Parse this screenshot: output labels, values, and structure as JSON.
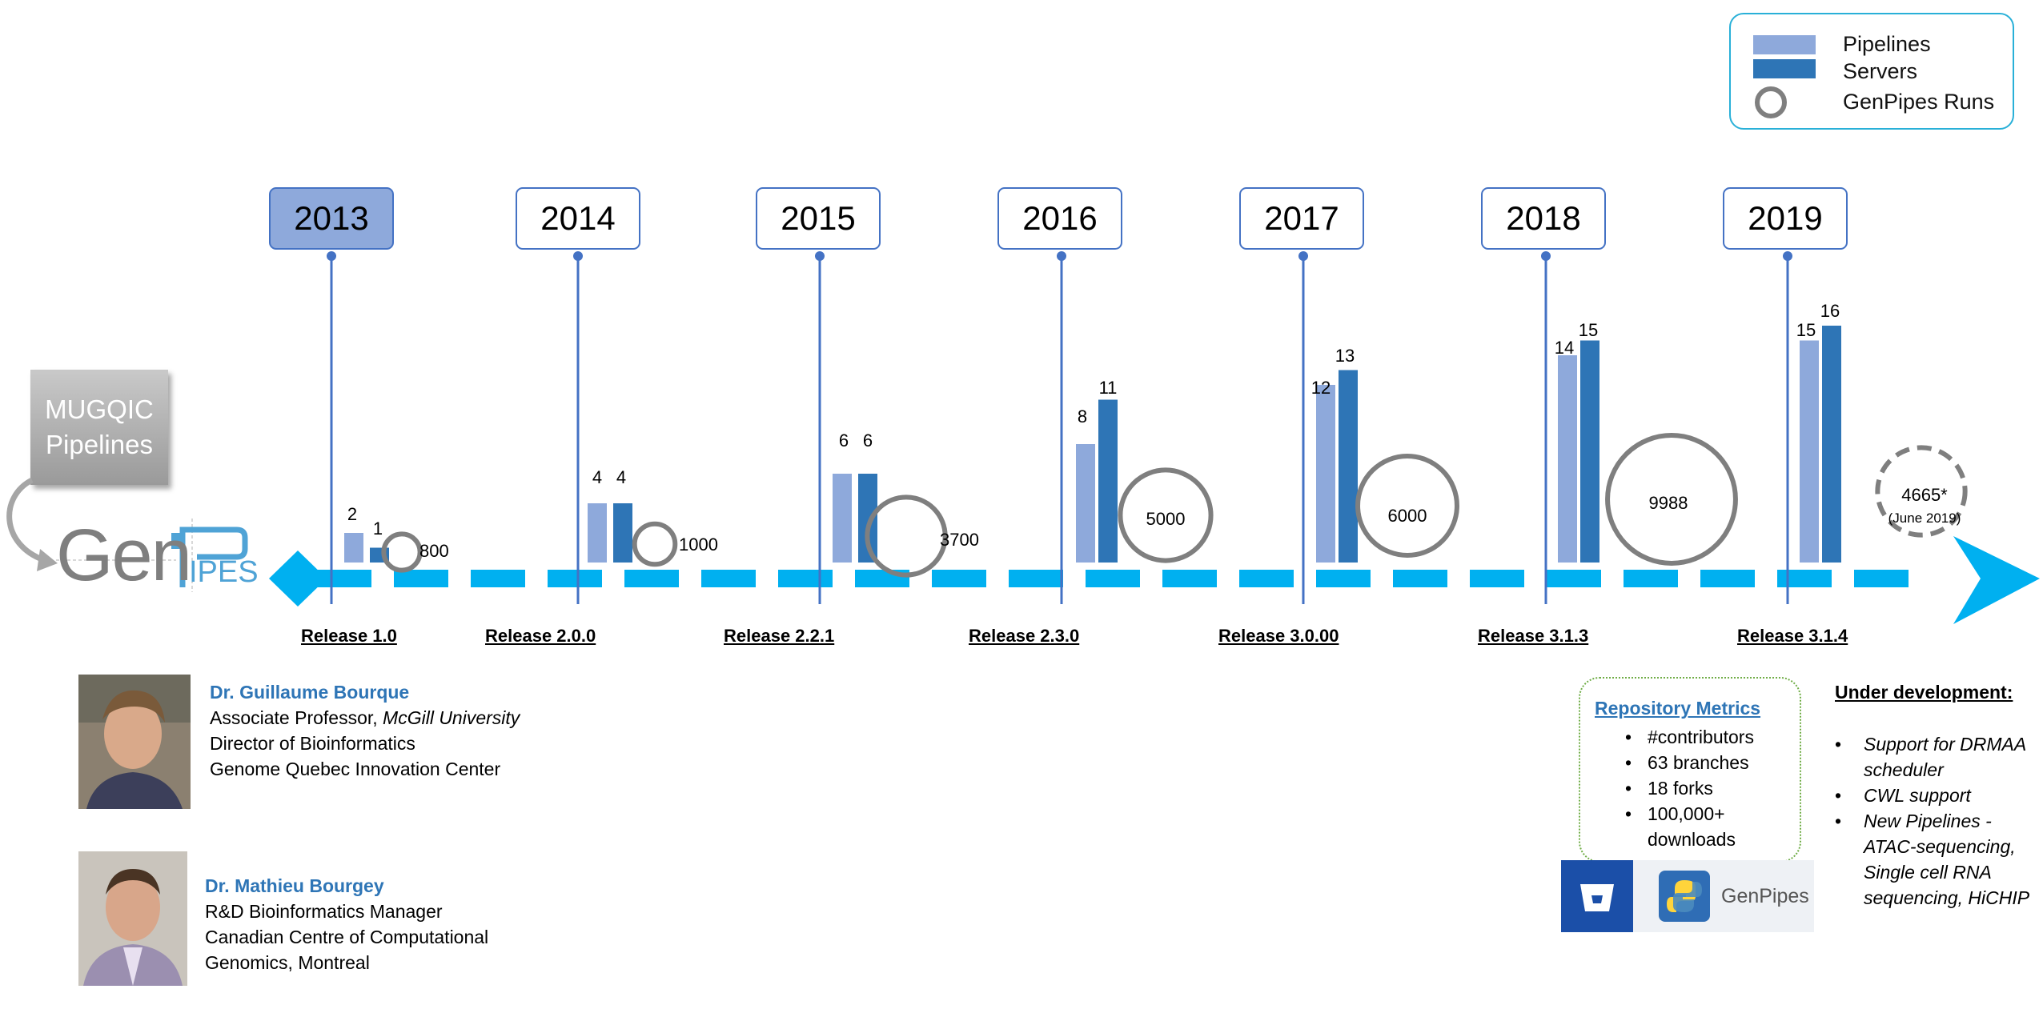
{
  "legend": {
    "pipelines": "Pipelines",
    "servers": "Servers",
    "runs": "GenPipes Runs"
  },
  "colors": {
    "pipelines_bar": "#8ea9db",
    "servers_bar": "#2e75b6",
    "runs_circle": "#7f7f7f",
    "timeline": "#00b0f0",
    "year_stem": "#4472c4"
  },
  "mugqic": {
    "line1": "MUGQIC",
    "line2": "Pipelines"
  },
  "logo": {
    "gen": "Gen",
    "ipes": "IPES"
  },
  "timeline": [
    {
      "year": "2013",
      "release": "Release 1.0",
      "pipelines": 2,
      "servers": 1,
      "runs": "800",
      "runs_value": 800,
      "active": true
    },
    {
      "year": "2014",
      "release": "Release 2.0.0",
      "pipelines": 4,
      "servers": 4,
      "runs": "1000",
      "runs_value": 1000
    },
    {
      "year": "2015",
      "release": "Release 2.2.1",
      "pipelines": 6,
      "servers": 6,
      "runs": "3700",
      "runs_value": 3700
    },
    {
      "year": "2016",
      "release": "Release 2.3.0",
      "pipelines": 8,
      "servers": 11,
      "runs": "5000",
      "runs_value": 5000
    },
    {
      "year": "2017",
      "release": "Release 3.0.00",
      "pipelines": 12,
      "servers": 13,
      "runs": "6000",
      "runs_value": 6000
    },
    {
      "year": "2018",
      "release": "Release 3.1.3",
      "pipelines": 14,
      "servers": 15,
      "runs": "9988",
      "runs_value": 9988
    },
    {
      "year": "2019",
      "release": "Release 3.1.4",
      "pipelines": 15,
      "servers": 16,
      "runs": "4665*",
      "runs_value": 4665,
      "runs_note": "(June 2019)",
      "projected": true
    }
  ],
  "people": [
    {
      "name": "Dr. Guillaume Bourque",
      "title_prefix": "Associate Professor, ",
      "title_affiliation": "McGill University",
      "line2": "Director of Bioinformatics",
      "line3": "Genome Quebec Innovation Center"
    },
    {
      "name": "Dr. Mathieu Bourgey",
      "line1": "R&D Bioinformatics Manager",
      "line2": "Canadian Centre of Computational",
      "line3": "Genomics, Montreal"
    }
  ],
  "repo": {
    "title": "Repository Metrics",
    "items": [
      "#contributors",
      "63 branches",
      "18 forks",
      "100,000+",
      "downloads"
    ]
  },
  "genpipes_badge": "GenPipes",
  "dev": {
    "title": "Under development:",
    "items": [
      [
        "Support for DRMAA",
        "scheduler"
      ],
      [
        "CWL support"
      ],
      [
        "New Pipelines -",
        "ATAC-sequencing,",
        "Single cell RNA",
        "sequencing, HiCHIP"
      ]
    ]
  }
}
